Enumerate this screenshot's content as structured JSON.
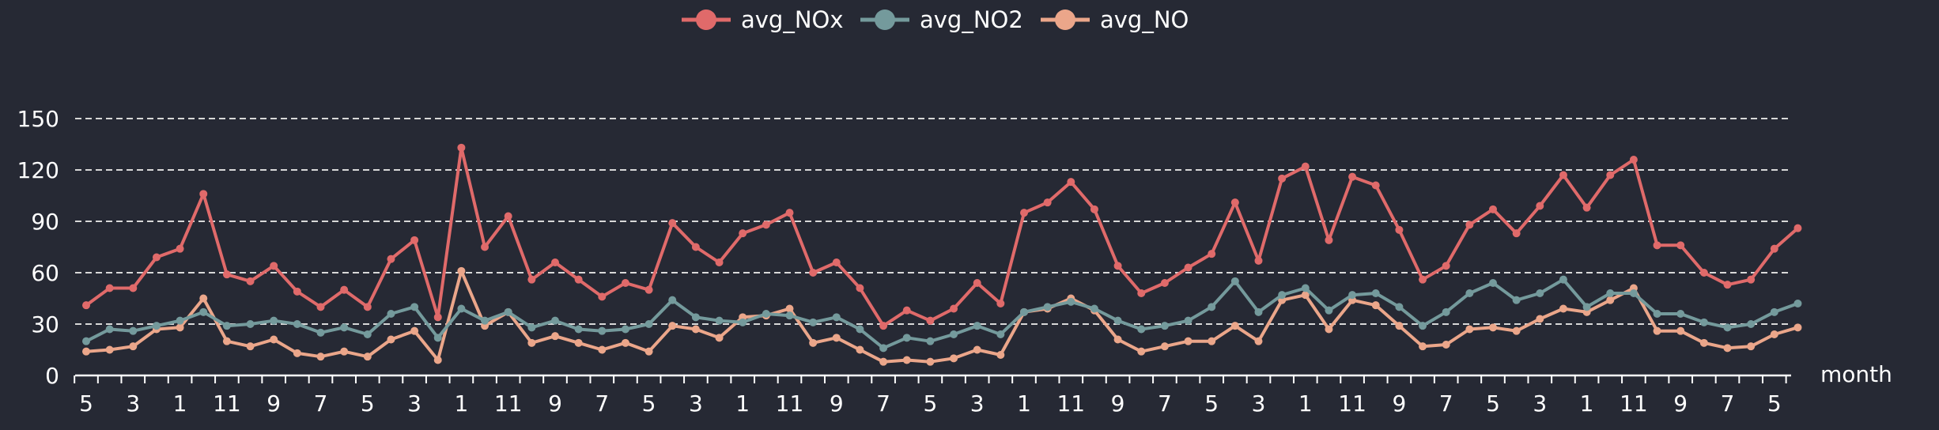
{
  "chart_data": {
    "type": "line",
    "xlabel": "month",
    "ylabel": "",
    "ylim": [
      0,
      150
    ],
    "yticks": [
      0,
      30,
      60,
      90,
      120,
      150
    ],
    "grid": true,
    "legend_position": "top-center",
    "x_tick_labels": [
      "5",
      "3",
      "1",
      "11",
      "9",
      "7",
      "5",
      "3",
      "1",
      "11",
      "9",
      "7",
      "5",
      "3",
      "1",
      "11",
      "9",
      "7",
      "5",
      "3",
      "1",
      "11",
      "9",
      "7",
      "5",
      "3",
      "1",
      "11",
      "9",
      "7",
      "5",
      "3",
      "1",
      "11",
      "9",
      "7",
      "5"
    ],
    "x": [
      5,
      4,
      3,
      2,
      1,
      12,
      11,
      10,
      9,
      8,
      7,
      6,
      5,
      4,
      3,
      2,
      1,
      12,
      11,
      10,
      9,
      8,
      7,
      6,
      5,
      4,
      3,
      2,
      1,
      12,
      11,
      10,
      9,
      8,
      7,
      6,
      5,
      4,
      3,
      2,
      1,
      12,
      11,
      10,
      9,
      8,
      7,
      6,
      5,
      4,
      3,
      2,
      1,
      12,
      11,
      10,
      9,
      8,
      7,
      6,
      5,
      4,
      3,
      2,
      1,
      12,
      11,
      10,
      9,
      8,
      7,
      6,
      5,
      4
    ],
    "series": [
      {
        "name": "avg_NOx",
        "color": "#e06a6a",
        "values": [
          41,
          51,
          51,
          69,
          74,
          106,
          59,
          55,
          64,
          49,
          40,
          50,
          40,
          68,
          79,
          34,
          133,
          75,
          93,
          56,
          66,
          56,
          46,
          54,
          50,
          89,
          75,
          66,
          83,
          88,
          95,
          60,
          66,
          51,
          29,
          38,
          32,
          39,
          54,
          42,
          95,
          101,
          113,
          97,
          64,
          48,
          54,
          63,
          71,
          101,
          67,
          115,
          122,
          79,
          116,
          111,
          85,
          56,
          64,
          88,
          97,
          83,
          99,
          117,
          98,
          117,
          126,
          76,
          76,
          60,
          53,
          56,
          74,
          86
        ]
      },
      {
        "name": "avg_NO2",
        "color": "#749a9c",
        "values": [
          20,
          27,
          26,
          29,
          32,
          37,
          29,
          30,
          32,
          30,
          25,
          28,
          24,
          36,
          40,
          22,
          39,
          32,
          37,
          28,
          32,
          27,
          26,
          27,
          30,
          44,
          34,
          32,
          31,
          36,
          35,
          31,
          34,
          27,
          16,
          22,
          20,
          24,
          29,
          24,
          37,
          40,
          43,
          39,
          32,
          27,
          29,
          32,
          40,
          55,
          37,
          47,
          51,
          38,
          47,
          48,
          40,
          29,
          37,
          48,
          54,
          44,
          48,
          56,
          40,
          48,
          48,
          36,
          36,
          31,
          28,
          30,
          37,
          42
        ]
      },
      {
        "name": "avg_NO",
        "color": "#eba68a",
        "values": [
          14,
          15,
          17,
          27,
          28,
          45,
          20,
          17,
          21,
          13,
          11,
          14,
          11,
          21,
          26,
          9,
          61,
          29,
          37,
          19,
          23,
          19,
          15,
          19,
          14,
          29,
          27,
          22,
          34,
          35,
          39,
          19,
          22,
          15,
          8,
          9,
          8,
          10,
          15,
          12,
          37,
          39,
          45,
          38,
          21,
          14,
          17,
          20,
          20,
          29,
          20,
          44,
          47,
          27,
          44,
          41,
          29,
          17,
          18,
          27,
          28,
          26,
          33,
          39,
          37,
          44,
          51,
          26,
          26,
          19,
          16,
          17,
          24,
          28
        ]
      }
    ]
  }
}
